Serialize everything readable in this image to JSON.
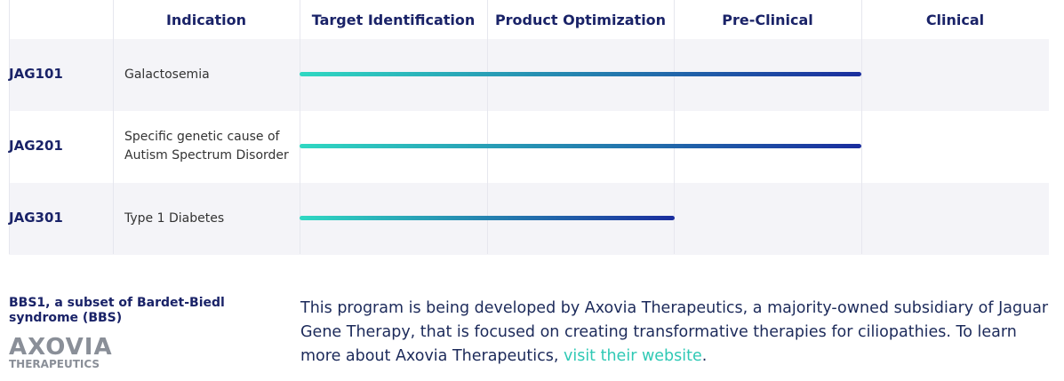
{
  "header": {
    "columns": [
      "Indication",
      "Target Identification",
      "Product Optimization",
      "Pre-Clinical",
      "Clinical"
    ]
  },
  "rows": [
    {
      "program": "JAG101",
      "indication": "Galactosemia",
      "progress": 3
    },
    {
      "program": "JAG201",
      "indication": "Specific genetic cause of Autism Spectrum Disorder",
      "progress": 3
    },
    {
      "program": "JAG301",
      "indication": "Type 1 Diabetes",
      "progress": 2
    }
  ],
  "note": {
    "program": "BBS1, a subset of Bardet-Biedl syndrome (BBS)",
    "logo": {
      "name": "AXOVIA",
      "subtitle": "THERAPEUTICS"
    },
    "text": "This program is being developed by Axovia Therapeutics, a majority-owned subsidiary of Jaguar Gene Therapy, that is focused on creating transformative therapies for ciliopathies. To learn more about Axovia Therapeutics, ",
    "link": "visit their website",
    "end": "."
  }
}
